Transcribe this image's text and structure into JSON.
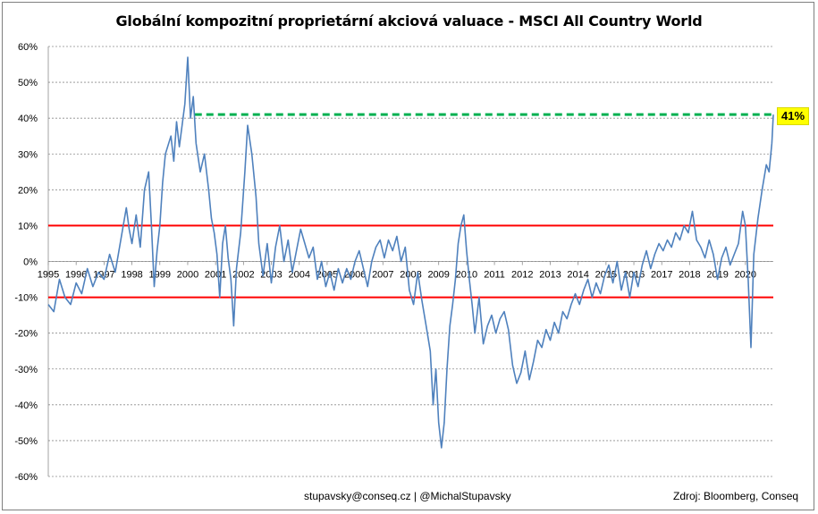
{
  "chart_data": {
    "type": "line",
    "title": "Globální kompozitní proprietární akciová valuace - MSCI All Country World",
    "y_tick_labels": [
      "60%",
      "50%",
      "40%",
      "30%",
      "20%",
      "10%",
      "0%",
      "-10%",
      "-20%",
      "-30%",
      "-40%",
      "-50%",
      "-60%"
    ],
    "x_tick_labels": [
      "1995",
      "1996",
      "1997",
      "1998",
      "1999",
      "2000",
      "2001",
      "2002",
      "2003",
      "2004",
      "2005",
      "2006",
      "2007",
      "2008",
      "2009",
      "2010",
      "2011",
      "2012",
      "2013",
      "2014",
      "2015",
      "2016",
      "2017",
      "2018",
      "2019",
      "2020"
    ],
    "ylim": [
      -0.6,
      0.6
    ],
    "xlim": [
      1995.0,
      2021.0
    ],
    "grid": "horizontal dashed",
    "reference_lines": [
      {
        "value": 0.1,
        "color": "#ff0000",
        "style": "solid"
      },
      {
        "value": -0.1,
        "color": "#ff0000",
        "style": "solid"
      },
      {
        "value": 0.41,
        "color": "#00b050",
        "style": "dashed",
        "from_x": 2000.25
      }
    ],
    "series": [
      {
        "color": "#4f81bd",
        "points": [
          [
            1995.0,
            -0.12
          ],
          [
            1995.2,
            -0.14
          ],
          [
            1995.4,
            -0.05
          ],
          [
            1995.6,
            -0.1
          ],
          [
            1995.8,
            -0.12
          ],
          [
            1996.0,
            -0.06
          ],
          [
            1996.2,
            -0.09
          ],
          [
            1996.4,
            -0.02
          ],
          [
            1996.6,
            -0.07
          ],
          [
            1996.8,
            -0.03
          ],
          [
            1997.0,
            -0.05
          ],
          [
            1997.2,
            0.02
          ],
          [
            1997.4,
            -0.03
          ],
          [
            1997.6,
            0.06
          ],
          [
            1997.8,
            0.15
          ],
          [
            1997.9,
            0.09
          ],
          [
            1998.0,
            0.05
          ],
          [
            1998.15,
            0.13
          ],
          [
            1998.3,
            0.04
          ],
          [
            1998.45,
            0.2
          ],
          [
            1998.6,
            0.25
          ],
          [
            1998.7,
            0.1
          ],
          [
            1998.8,
            -0.07
          ],
          [
            1998.9,
            0.03
          ],
          [
            1999.0,
            0.1
          ],
          [
            1999.1,
            0.22
          ],
          [
            1999.2,
            0.3
          ],
          [
            1999.4,
            0.35
          ],
          [
            1999.5,
            0.28
          ],
          [
            1999.6,
            0.39
          ],
          [
            1999.7,
            0.32
          ],
          [
            1999.8,
            0.38
          ],
          [
            1999.9,
            0.44
          ],
          [
            2000.0,
            0.57
          ],
          [
            2000.1,
            0.4
          ],
          [
            2000.2,
            0.46
          ],
          [
            2000.3,
            0.33
          ],
          [
            2000.45,
            0.25
          ],
          [
            2000.6,
            0.3
          ],
          [
            2000.75,
            0.2
          ],
          [
            2000.85,
            0.12
          ],
          [
            2000.95,
            0.08
          ],
          [
            2001.05,
            0.02
          ],
          [
            2001.15,
            -0.1
          ],
          [
            2001.25,
            0.05
          ],
          [
            2001.35,
            0.1
          ],
          [
            2001.45,
            0.01
          ],
          [
            2001.55,
            -0.05
          ],
          [
            2001.65,
            -0.18
          ],
          [
            2001.75,
            -0.02
          ],
          [
            2001.9,
            0.08
          ],
          [
            2002.05,
            0.25
          ],
          [
            2002.15,
            0.38
          ],
          [
            2002.3,
            0.3
          ],
          [
            2002.45,
            0.18
          ],
          [
            2002.55,
            0.05
          ],
          [
            2002.7,
            -0.04
          ],
          [
            2002.85,
            0.05
          ],
          [
            2003.0,
            -0.06
          ],
          [
            2003.15,
            0.04
          ],
          [
            2003.3,
            0.1
          ],
          [
            2003.45,
            0.0
          ],
          [
            2003.6,
            0.06
          ],
          [
            2003.75,
            -0.03
          ],
          [
            2003.9,
            0.03
          ],
          [
            2004.05,
            0.09
          ],
          [
            2004.2,
            0.05
          ],
          [
            2004.35,
            0.01
          ],
          [
            2004.5,
            0.04
          ],
          [
            2004.65,
            -0.05
          ],
          [
            2004.8,
            0.0
          ],
          [
            2004.95,
            -0.07
          ],
          [
            2005.1,
            -0.03
          ],
          [
            2005.25,
            -0.08
          ],
          [
            2005.4,
            -0.02
          ],
          [
            2005.55,
            -0.06
          ],
          [
            2005.7,
            -0.02
          ],
          [
            2005.85,
            -0.05
          ],
          [
            2006.0,
            0.0
          ],
          [
            2006.15,
            0.03
          ],
          [
            2006.3,
            -0.02
          ],
          [
            2006.45,
            -0.07
          ],
          [
            2006.6,
            0.0
          ],
          [
            2006.75,
            0.04
          ],
          [
            2006.9,
            0.06
          ],
          [
            2007.05,
            0.01
          ],
          [
            2007.2,
            0.06
          ],
          [
            2007.35,
            0.03
          ],
          [
            2007.5,
            0.07
          ],
          [
            2007.65,
            0.0
          ],
          [
            2007.8,
            0.04
          ],
          [
            2007.95,
            -0.08
          ],
          [
            2008.1,
            -0.12
          ],
          [
            2008.25,
            -0.03
          ],
          [
            2008.4,
            -0.11
          ],
          [
            2008.55,
            -0.18
          ],
          [
            2008.7,
            -0.25
          ],
          [
            2008.8,
            -0.4
          ],
          [
            2008.9,
            -0.3
          ],
          [
            2009.0,
            -0.45
          ],
          [
            2009.1,
            -0.52
          ],
          [
            2009.2,
            -0.45
          ],
          [
            2009.3,
            -0.3
          ],
          [
            2009.4,
            -0.18
          ],
          [
            2009.5,
            -0.12
          ],
          [
            2009.6,
            -0.05
          ],
          [
            2009.7,
            0.05
          ],
          [
            2009.8,
            0.1
          ],
          [
            2009.9,
            0.13
          ],
          [
            2010.0,
            0.03
          ],
          [
            2010.1,
            -0.05
          ],
          [
            2010.2,
            -0.12
          ],
          [
            2010.3,
            -0.2
          ],
          [
            2010.45,
            -0.1
          ],
          [
            2010.6,
            -0.23
          ],
          [
            2010.75,
            -0.18
          ],
          [
            2010.9,
            -0.15
          ],
          [
            2011.05,
            -0.2
          ],
          [
            2011.2,
            -0.16
          ],
          [
            2011.35,
            -0.14
          ],
          [
            2011.5,
            -0.19
          ],
          [
            2011.65,
            -0.29
          ],
          [
            2011.8,
            -0.34
          ],
          [
            2011.95,
            -0.31
          ],
          [
            2012.1,
            -0.25
          ],
          [
            2012.25,
            -0.33
          ],
          [
            2012.4,
            -0.28
          ],
          [
            2012.55,
            -0.22
          ],
          [
            2012.7,
            -0.24
          ],
          [
            2012.85,
            -0.19
          ],
          [
            2013.0,
            -0.22
          ],
          [
            2013.15,
            -0.17
          ],
          [
            2013.3,
            -0.2
          ],
          [
            2013.45,
            -0.14
          ],
          [
            2013.6,
            -0.16
          ],
          [
            2013.75,
            -0.12
          ],
          [
            2013.9,
            -0.09
          ],
          [
            2014.05,
            -0.12
          ],
          [
            2014.2,
            -0.08
          ],
          [
            2014.35,
            -0.05
          ],
          [
            2014.5,
            -0.1
          ],
          [
            2014.65,
            -0.06
          ],
          [
            2014.8,
            -0.09
          ],
          [
            2014.95,
            -0.04
          ],
          [
            2015.1,
            -0.01
          ],
          [
            2015.25,
            -0.06
          ],
          [
            2015.4,
            0.0
          ],
          [
            2015.55,
            -0.08
          ],
          [
            2015.7,
            -0.03
          ],
          [
            2015.85,
            -0.1
          ],
          [
            2016.0,
            -0.03
          ],
          [
            2016.15,
            -0.07
          ],
          [
            2016.3,
            -0.01
          ],
          [
            2016.45,
            0.03
          ],
          [
            2016.6,
            -0.02
          ],
          [
            2016.75,
            0.02
          ],
          [
            2016.9,
            0.05
          ],
          [
            2017.05,
            0.03
          ],
          [
            2017.2,
            0.06
          ],
          [
            2017.35,
            0.04
          ],
          [
            2017.5,
            0.08
          ],
          [
            2017.65,
            0.06
          ],
          [
            2017.8,
            0.1
          ],
          [
            2017.95,
            0.08
          ],
          [
            2018.1,
            0.14
          ],
          [
            2018.25,
            0.06
          ],
          [
            2018.4,
            0.04
          ],
          [
            2018.55,
            0.01
          ],
          [
            2018.7,
            0.06
          ],
          [
            2018.85,
            0.02
          ],
          [
            2019.0,
            -0.05
          ],
          [
            2019.15,
            0.01
          ],
          [
            2019.3,
            0.04
          ],
          [
            2019.45,
            -0.01
          ],
          [
            2019.6,
            0.02
          ],
          [
            2019.75,
            0.05
          ],
          [
            2019.9,
            0.14
          ],
          [
            2020.0,
            0.1
          ],
          [
            2020.1,
            -0.05
          ],
          [
            2020.2,
            -0.24
          ],
          [
            2020.3,
            0.02
          ],
          [
            2020.45,
            0.12
          ],
          [
            2020.6,
            0.2
          ],
          [
            2020.75,
            0.27
          ],
          [
            2020.85,
            0.25
          ],
          [
            2020.95,
            0.33
          ],
          [
            2021.0,
            0.41
          ]
        ]
      }
    ]
  },
  "callout": "41%",
  "footer": {
    "credit": "stupavsky@conseq.cz  |  @MichalStupavsky",
    "source": "Zdroj: Bloomberg, Conseq"
  },
  "colors": {
    "line": "#4f81bd",
    "threshold": "#ff0000",
    "target": "#00b050",
    "callout_bg": "#ffff00"
  }
}
